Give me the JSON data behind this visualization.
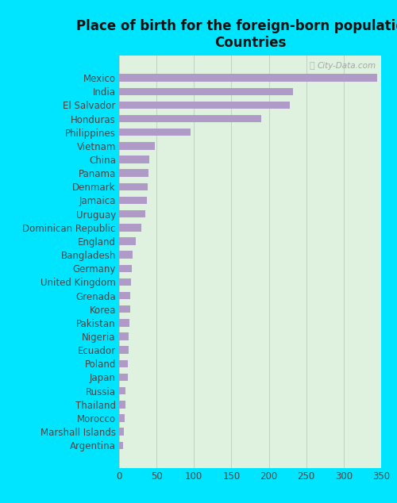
{
  "title": "Place of birth for the foreign-born population -\nCountries",
  "categories": [
    "Mexico",
    "India",
    "El Salvador",
    "Honduras",
    "Philippines",
    "Vietnam",
    "China",
    "Panama",
    "Denmark",
    "Jamaica",
    "Uruguay",
    "Dominican Republic",
    "England",
    "Bangladesh",
    "Germany",
    "United Kingdom",
    "Grenada",
    "Korea",
    "Pakistan",
    "Nigeria",
    "Ecuador",
    "Poland",
    "Japan",
    "Russia",
    "Thailand",
    "Morocco",
    "Marshall Islands",
    "Argentina"
  ],
  "values": [
    345,
    232,
    228,
    190,
    95,
    48,
    40,
    39,
    38,
    37,
    35,
    30,
    22,
    18,
    17,
    16,
    15,
    15,
    14,
    13,
    13,
    12,
    12,
    9,
    8,
    7,
    6,
    5
  ],
  "bar_color": "#b09ac8",
  "bg_color": "#00e5ff",
  "plot_bg_color": "#dff2e0",
  "grid_color": "#bbccbb",
  "title_fontsize": 12,
  "label_fontsize": 8.5,
  "tick_fontsize": 8.5,
  "xlim": [
    0,
    350
  ],
  "xticks": [
    0,
    50,
    100,
    150,
    200,
    250,
    300,
    350
  ],
  "watermark": "City-Data.com",
  "bar_height": 0.55
}
